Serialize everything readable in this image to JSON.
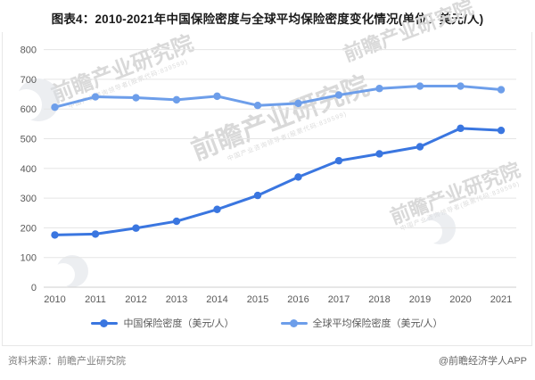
{
  "title": "图表4：2010-2021年中国保险密度与全球平均保险密度变化情况(单位：美元/人)",
  "chart_data": {
    "type": "line",
    "categories": [
      "2010",
      "2011",
      "2012",
      "2013",
      "2014",
      "2015",
      "2016",
      "2017",
      "2018",
      "2019",
      "2020",
      "2021"
    ],
    "series": [
      {
        "name": "中国保险密度（美元/人）",
        "color": "#3a76e0",
        "values": [
          176,
          179,
          199,
          222,
          262,
          309,
          371,
          426,
          449,
          473,
          535,
          528
        ]
      },
      {
        "name": "全球平均保险密度（美元/人）",
        "color": "#6d9eea",
        "values": [
          606,
          641,
          638,
          631,
          643,
          612,
          619,
          647,
          669,
          677,
          677,
          665
        ]
      }
    ],
    "xlabel": "",
    "ylabel": "",
    "ylim": [
      0,
      800
    ],
    "ytick_step": 100,
    "grid": true,
    "legend_position": "bottom"
  },
  "footer": {
    "source": "资料来源：前瞻产业研究院",
    "credit": "@前瞻经济学人APP"
  },
  "watermark": {
    "text": "前瞻产业研究院",
    "subtext": "中国产业咨询领导者(股票代码:839599)"
  },
  "colors": {
    "china_line": "#3a76e0",
    "global_line": "#6d9eea",
    "gridline": "#e5e5e5",
    "axis_zero_line": "#cfcfcf",
    "axis_text": "#595959",
    "title_text": "#1a1a1a"
  }
}
